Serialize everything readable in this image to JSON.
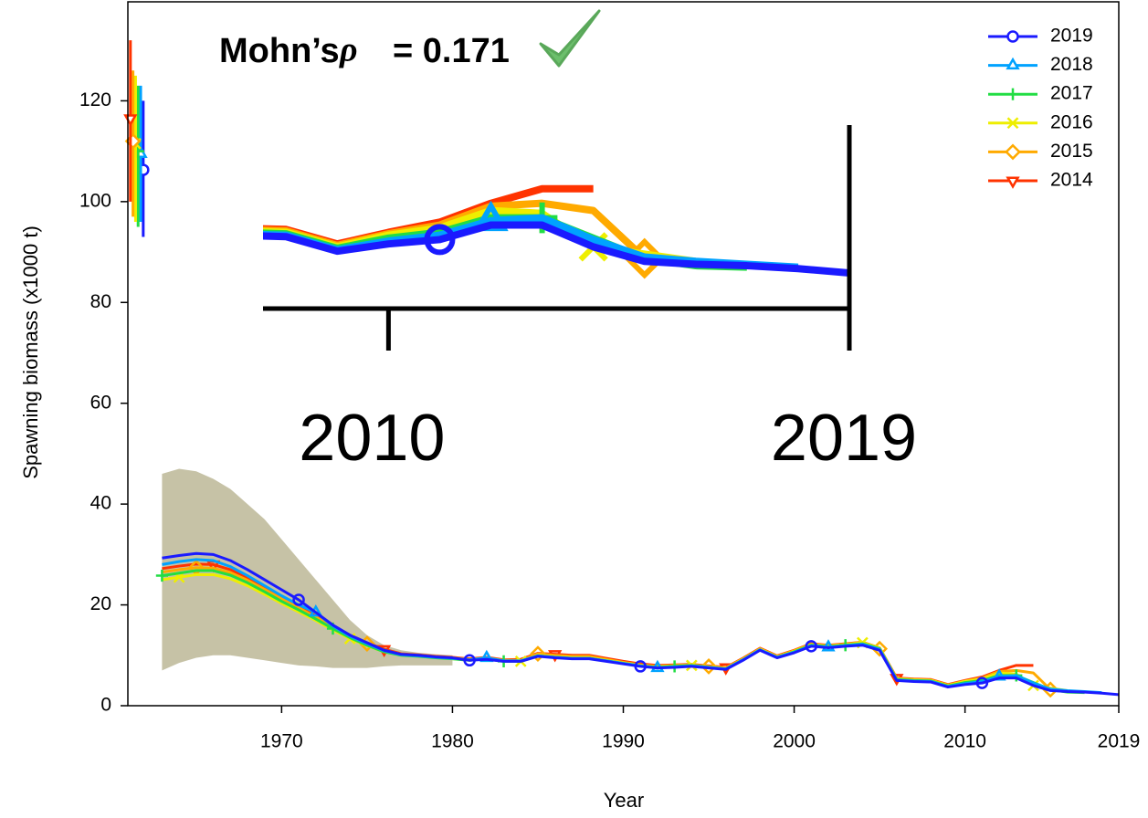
{
  "chart_data": {
    "type": "line",
    "annotation": {
      "label": "Mohn’s",
      "symbol": "ρ",
      "value": "= 0.171"
    },
    "x_label": "Year",
    "y_label": "Spawning biomass (x1000 t)",
    "x": [
      1963,
      1964,
      1965,
      1966,
      1967,
      1968,
      1969,
      1970,
      1971,
      1972,
      1973,
      1974,
      1975,
      1976,
      1977,
      1978,
      1979,
      1980,
      1981,
      1982,
      1983,
      1984,
      1985,
      1986,
      1987,
      1988,
      1989,
      1990,
      1991,
      1992,
      1993,
      1994,
      1995,
      1996,
      1997,
      1998,
      1999,
      2000,
      2001,
      2002,
      2003,
      2004,
      2005,
      2006,
      2007,
      2008,
      2009,
      2010,
      2011,
      2012,
      2013,
      2014,
      2015,
      2016,
      2017,
      2018,
      2019
    ],
    "series": [
      {
        "name": "2019",
        "color": "#1a1aff",
        "marker": "circle",
        "values": [
          29.3,
          29.8,
          30.2,
          30,
          28.8,
          27,
          25,
          23,
          21,
          18.5,
          16,
          14,
          12.5,
          11,
          10.2,
          10,
          9.7,
          9.5,
          9,
          9.2,
          8.8,
          8.8,
          9.8,
          9.5,
          9.3,
          9.3,
          8.8,
          8.3,
          7.8,
          7.5,
          7.6,
          7.8,
          7.5,
          7.2,
          9,
          11,
          9.5,
          10.5,
          11.8,
          11.5,
          11.8,
          12,
          11,
          5,
          4.8,
          4.7,
          3.7,
          4.2,
          4.5,
          5.5,
          5.5,
          4,
          3,
          2.8,
          2.7,
          2.5,
          2.2
        ],
        "terminal": {
          "x": 1961.9,
          "value": 106.3,
          "low": 93,
          "high": 120
        }
      },
      {
        "name": "2018",
        "color": "#00a2ff",
        "marker": "triangle",
        "values": [
          28,
          28.6,
          29,
          28.8,
          27.6,
          25.8,
          23.8,
          21.8,
          20,
          18.5,
          15.8,
          13.8,
          12.3,
          10.9,
          10.1,
          9.9,
          9.6,
          9.4,
          9.1,
          9.5,
          8.9,
          8.9,
          9.9,
          9.6,
          9.4,
          9.4,
          8.9,
          8.4,
          7.9,
          7.5,
          7.7,
          7.9,
          7.6,
          7.3,
          9.1,
          11.1,
          9.6,
          10.6,
          11.9,
          11.6,
          11.9,
          12.2,
          11.2,
          5.1,
          4.9,
          4.8,
          3.8,
          4.4,
          4.8,
          5.8,
          6,
          4.5,
          3.3,
          3,
          2.8,
          2.6,
          null
        ],
        "terminal": {
          "x": 1961.75,
          "value": 109.5,
          "low": 96,
          "high": 123
        }
      },
      {
        "name": "2017",
        "color": "#22dd44",
        "marker": "plus",
        "values": [
          25.8,
          26.3,
          26.8,
          26.8,
          25.9,
          24.4,
          22.6,
          20.7,
          19,
          17.2,
          15.3,
          13.5,
          12,
          10.7,
          10,
          9.8,
          9.5,
          9.3,
          9,
          9.3,
          8.8,
          8.8,
          9.9,
          9.6,
          9.4,
          9.4,
          8.9,
          8.4,
          7.9,
          7.6,
          7.8,
          8,
          7.6,
          7.3,
          9.1,
          11.1,
          9.6,
          10.7,
          12,
          11.7,
          12,
          12.3,
          11.3,
          5.2,
          5,
          4.9,
          3.9,
          4.6,
          5,
          6,
          6,
          4.6,
          3.2,
          2.7,
          2.6,
          null,
          null
        ],
        "terminal": {
          "x": 1961.6,
          "value": 110,
          "low": 95,
          "high": 123
        }
      },
      {
        "name": "2016",
        "color": "#eeee00",
        "marker": "x",
        "values": [
          25,
          25.5,
          26,
          26,
          25.2,
          23.8,
          22.1,
          20.3,
          18.6,
          16.9,
          15,
          13.3,
          11.9,
          10.7,
          10,
          9.8,
          9.5,
          9.3,
          9,
          9.3,
          8.8,
          8.8,
          10,
          9.7,
          9.5,
          9.5,
          9,
          8.5,
          8,
          7.7,
          7.9,
          8,
          7.7,
          7.4,
          9.2,
          11.2,
          9.7,
          10.8,
          12.1,
          11.8,
          12.1,
          12.5,
          11.5,
          5.3,
          5.1,
          5,
          4,
          4.8,
          5.3,
          6.5,
          6.3,
          4,
          3.5,
          3,
          null,
          null,
          null
        ],
        "terminal": {
          "x": 1961.45,
          "value": 111.5,
          "low": 96,
          "high": 125
        }
      },
      {
        "name": "2015",
        "color": "#ffaa00",
        "marker": "diamond",
        "values": [
          26.5,
          27,
          27.4,
          27.3,
          26.4,
          24.9,
          23.1,
          21.2,
          19.4,
          17.6,
          15.6,
          13.8,
          12.3,
          11,
          10.2,
          10,
          9.7,
          9.5,
          9.2,
          9.5,
          9,
          9,
          10.3,
          10,
          9.8,
          9.8,
          9.2,
          8.6,
          8.1,
          7.8,
          8,
          8.1,
          7.8,
          7.5,
          9.3,
          11.3,
          9.8,
          10.9,
          12.2,
          11.9,
          12.2,
          12.6,
          11.3,
          5.4,
          5.2,
          5.1,
          4.1,
          4.9,
          5.5,
          6.8,
          7,
          6.5,
          3.2,
          null,
          null,
          null,
          null
        ],
        "terminal": {
          "x": 1961.3,
          "value": 112,
          "low": 97,
          "high": 126
        }
      },
      {
        "name": "2014",
        "color": "#ff3300",
        "marker": "triangle-down",
        "values": [
          27.2,
          27.7,
          28.1,
          28,
          27,
          25.4,
          23.5,
          21.5,
          19.6,
          17.8,
          15.8,
          14,
          12.5,
          11.2,
          10.3,
          10.1,
          9.8,
          9.6,
          9.3,
          9.6,
          9.1,
          9.2,
          10.4,
          10.2,
          10,
          10,
          9.4,
          8.8,
          8.3,
          8,
          8.1,
          8.2,
          7.9,
          7.6,
          9.4,
          11.4,
          9.9,
          11,
          12.3,
          12,
          12.3,
          12.6,
          11.5,
          5.5,
          5.3,
          5.2,
          4.2,
          5,
          5.7,
          7,
          8,
          8,
          null,
          null,
          null,
          null,
          null
        ],
        "terminal": {
          "x": 1961.15,
          "value": 116.5,
          "low": 100,
          "high": 132
        }
      }
    ],
    "band": {
      "color": "#b3ad88",
      "x": [
        1963,
        1964,
        1965,
        1966,
        1967,
        1968,
        1969,
        1970,
        1971,
        1972,
        1973,
        1974,
        1975,
        1976,
        1977,
        1978,
        1979,
        1980
      ],
      "lower": [
        7,
        8.5,
        9.5,
        10,
        10,
        9.5,
        9,
        8.5,
        8,
        7.8,
        7.5,
        7.5,
        7.5,
        7.8,
        8,
        8,
        8,
        8
      ],
      "upper": [
        46,
        47,
        46.5,
        45,
        43,
        40,
        37,
        33,
        29,
        25,
        21,
        17,
        14,
        12,
        11,
        10.5,
        10.2,
        10
      ]
    },
    "xlim": [
      1961,
      2019
    ],
    "xticks": [
      1970,
      1980,
      1990,
      2000,
      2010,
      2019
    ],
    "ylim": [
      0,
      140
    ],
    "yticks": [
      0,
      20,
      40,
      60,
      80,
      100,
      120
    ],
    "legend": "topright",
    "inset": {
      "xlim": [
        2007.55,
        2019
      ],
      "ylim": [
        0,
        21
      ],
      "xticks": [
        2010,
        2019
      ]
    }
  }
}
